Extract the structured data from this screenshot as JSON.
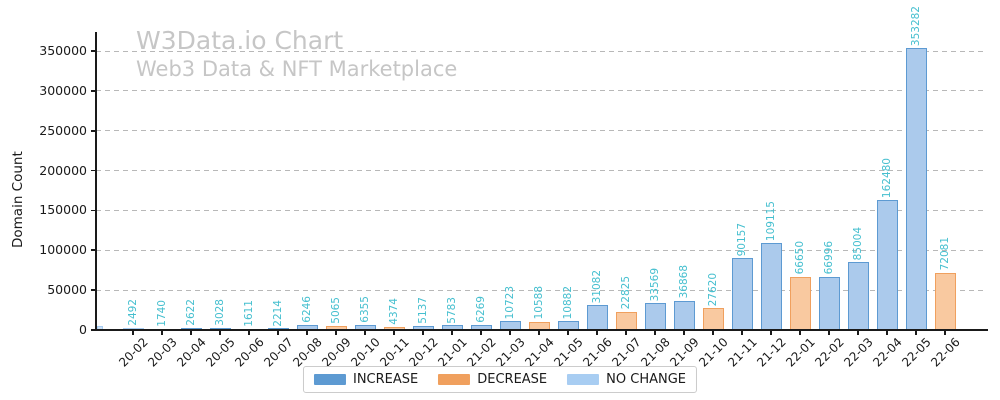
{
  "header": {
    "title": "W3Data.io Chart",
    "subtitle": "Web3 Data & NFT Marketplace"
  },
  "colors": {
    "title_gray": "#c6c6c6",
    "increase_edge": "#5d9ad2",
    "increase_fill": "#abcaec",
    "decrease_edge": "#f0a05e",
    "decrease_fill": "#f9c9a0",
    "no_change_edge": "#a8cdf2",
    "no_change_fill": "#cbe1f7",
    "value_label": "#45bfcf",
    "axis_text": "#1a1a1a"
  },
  "legend": [
    {
      "key": "increase",
      "label": "INCREASE"
    },
    {
      "key": "decrease",
      "label": "DECREASE"
    },
    {
      "key": "no_change",
      "label": "NO CHANGE"
    }
  ],
  "chart_data": {
    "type": "bar",
    "title": "W3Data.io Chart",
    "subtitle": "Web3 Data & NFT Marketplace",
    "xlabel": "",
    "ylabel": "Domain Count",
    "ylim": [
      0,
      370000
    ],
    "yticks": [
      0,
      50000,
      100000,
      150000,
      200000,
      250000,
      300000,
      350000
    ],
    "yticklabels": [
      "0",
      "50000",
      "100000",
      "150000",
      "200000",
      "250000",
      "300000",
      "350000"
    ],
    "grid": "horizontal-dashed",
    "legend_position": "bottom-center",
    "bar_value_labels": "rotated-90-above-bars",
    "xtick_rotation": 45,
    "categories": [
      "20-02",
      "20-03",
      "20-04",
      "20-05",
      "20-06",
      "20-07",
      "20-08",
      "20-09",
      "20-10",
      "20-11",
      "20-12",
      "21-01",
      "21-02",
      "21-03",
      "21-04",
      "21-05",
      "21-06",
      "21-07",
      "21-08",
      "21-09",
      "21-10",
      "21-11",
      "21-12",
      "22-01",
      "22-02",
      "22-03",
      "22-04",
      "22-05",
      "22-06"
    ],
    "values": [
      2492,
      1740,
      2622,
      3028,
      1611,
      2214,
      6246,
      5065,
      6355,
      4374,
      5137,
      5783,
      6269,
      10723,
      10588,
      10882,
      31082,
      22825,
      33569,
      36868,
      27620,
      90157,
      109115,
      66650,
      66996,
      85004,
      162480,
      353282,
      72081
    ],
    "change": [
      "no_change",
      "decrease",
      "increase",
      "increase",
      "decrease",
      "increase",
      "increase",
      "decrease",
      "increase",
      "decrease",
      "increase",
      "increase",
      "increase",
      "increase",
      "decrease",
      "increase",
      "increase",
      "decrease",
      "increase",
      "increase",
      "decrease",
      "increase",
      "increase",
      "decrease",
      "increase",
      "increase",
      "increase",
      "increase",
      "decrease"
    ],
    "partial_bar_left_edge": {
      "change": "no_change",
      "approx_value": 5000,
      "clipped_by_y_axis": true
    }
  }
}
